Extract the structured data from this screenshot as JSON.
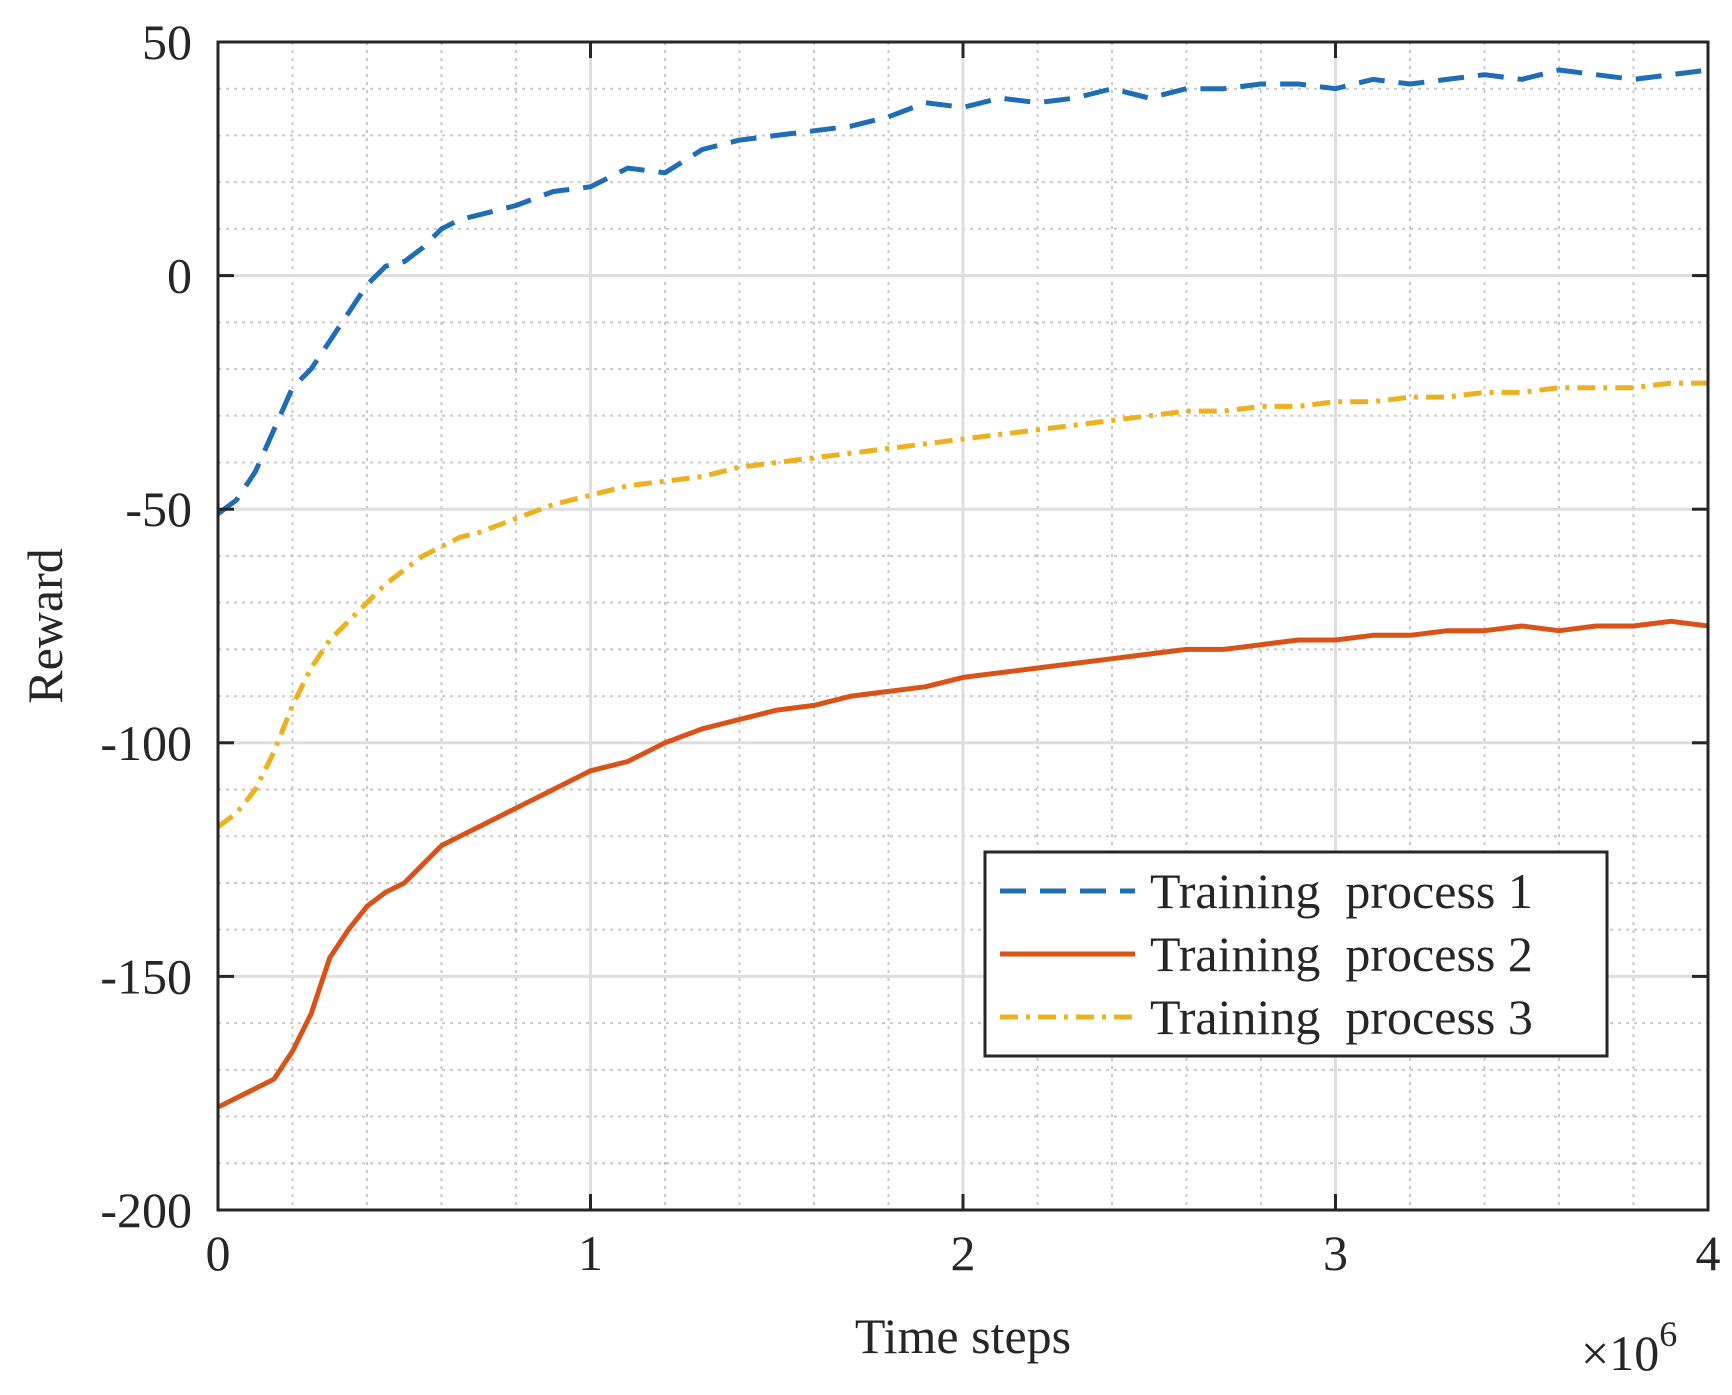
{
  "chart_data": {
    "type": "line",
    "title": "",
    "xlabel": "Time steps",
    "ylabel": "Reward",
    "x_exponent_label": "×10",
    "x_exponent_power": "6",
    "xlim": [
      0,
      4
    ],
    "ylim": [
      -200,
      50
    ],
    "x_ticks": [
      0,
      1,
      2,
      3,
      4
    ],
    "x_tick_labels": [
      "0",
      "1",
      "2",
      "3",
      "4"
    ],
    "y_ticks": [
      -200,
      -150,
      -100,
      -50,
      0,
      50
    ],
    "y_tick_labels": [
      "-200",
      "-150",
      "-100",
      "-50",
      "0",
      "50"
    ],
    "x_minor_step": 0.2,
    "y_minor_step": 10,
    "grid": true,
    "legend_position": "lower-right",
    "series": [
      {
        "name": "Training  process 1",
        "color": "#1f6db5",
        "style": "dashed",
        "x": [
          0,
          0.05,
          0.1,
          0.15,
          0.2,
          0.25,
          0.3,
          0.35,
          0.4,
          0.45,
          0.5,
          0.55,
          0.6,
          0.65,
          0.7,
          0.8,
          0.9,
          1.0,
          1.1,
          1.2,
          1.3,
          1.4,
          1.5,
          1.6,
          1.7,
          1.8,
          1.9,
          2.0,
          2.1,
          2.2,
          2.3,
          2.4,
          2.5,
          2.6,
          2.7,
          2.8,
          2.9,
          3.0,
          3.1,
          3.2,
          3.3,
          3.4,
          3.5,
          3.6,
          3.7,
          3.8,
          3.9,
          4.0
        ],
        "values": [
          -51,
          -48,
          -42,
          -33,
          -24,
          -20,
          -14,
          -8,
          -2,
          2,
          3,
          6,
          10,
          12,
          13,
          15,
          18,
          19,
          23,
          22,
          27,
          29,
          30,
          31,
          32,
          34,
          37,
          36,
          38,
          37,
          38,
          40,
          38,
          40,
          40,
          41,
          41,
          40,
          42,
          41,
          42,
          43,
          42,
          44,
          43,
          42,
          43,
          44
        ]
      },
      {
        "name": "Training  process 2",
        "color": "#d95319",
        "style": "solid",
        "x": [
          0,
          0.05,
          0.1,
          0.15,
          0.2,
          0.25,
          0.3,
          0.35,
          0.4,
          0.45,
          0.5,
          0.55,
          0.6,
          0.65,
          0.7,
          0.8,
          0.9,
          1.0,
          1.1,
          1.2,
          1.3,
          1.4,
          1.5,
          1.6,
          1.7,
          1.8,
          1.9,
          2.0,
          2.1,
          2.2,
          2.3,
          2.4,
          2.5,
          2.6,
          2.7,
          2.8,
          2.9,
          3.0,
          3.1,
          3.2,
          3.3,
          3.4,
          3.5,
          3.6,
          3.7,
          3.8,
          3.9,
          4.0
        ],
        "values": [
          -178,
          -176,
          -174,
          -172,
          -166,
          -158,
          -146,
          -140,
          -135,
          -132,
          -130,
          -126,
          -122,
          -120,
          -118,
          -114,
          -110,
          -106,
          -104,
          -100,
          -97,
          -95,
          -93,
          -92,
          -90,
          -89,
          -88,
          -86,
          -85,
          -84,
          -83,
          -82,
          -81,
          -80,
          -80,
          -79,
          -78,
          -78,
          -77,
          -77,
          -76,
          -76,
          -75,
          -76,
          -75,
          -75,
          -74,
          -75
        ]
      },
      {
        "name": "Training  process 3",
        "color": "#edb120",
        "style": "dashdot",
        "x": [
          0,
          0.05,
          0.1,
          0.15,
          0.2,
          0.25,
          0.3,
          0.35,
          0.4,
          0.45,
          0.5,
          0.55,
          0.6,
          0.65,
          0.7,
          0.8,
          0.9,
          1.0,
          1.1,
          1.2,
          1.3,
          1.4,
          1.5,
          1.6,
          1.7,
          1.8,
          1.9,
          2.0,
          2.1,
          2.2,
          2.3,
          2.4,
          2.5,
          2.6,
          2.7,
          2.8,
          2.9,
          3.0,
          3.1,
          3.2,
          3.3,
          3.4,
          3.5,
          3.6,
          3.7,
          3.8,
          3.9,
          4.0
        ],
        "values": [
          -118,
          -115,
          -110,
          -102,
          -92,
          -84,
          -78,
          -74,
          -70,
          -66,
          -63,
          -60,
          -58,
          -56,
          -55,
          -52,
          -49,
          -47,
          -45,
          -44,
          -43,
          -41,
          -40,
          -39,
          -38,
          -37,
          -36,
          -35,
          -34,
          -33,
          -32,
          -31,
          -30,
          -29,
          -29,
          -28,
          -28,
          -27,
          -27,
          -26,
          -26,
          -25,
          -25,
          -24,
          -24,
          -24,
          -23,
          -23
        ]
      }
    ]
  }
}
